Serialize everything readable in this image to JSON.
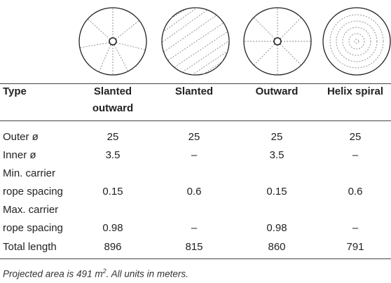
{
  "columns": [
    {
      "key": "type",
      "label": "Type"
    },
    {
      "key": "slanted_outward",
      "label_line1": "Slanted",
      "label_line2": "outward"
    },
    {
      "key": "slanted",
      "label_line1": "Slanted",
      "label_line2": ""
    },
    {
      "key": "outward",
      "label_line1": "Outward",
      "label_line2": ""
    },
    {
      "key": "helix_spiral",
      "label_line1": "Helix spiral",
      "label_line2": ""
    }
  ],
  "rows": [
    {
      "label_line1": "Outer ø",
      "label_line2": "",
      "values": [
        "25",
        "25",
        "25",
        "25"
      ]
    },
    {
      "label_line1": "Inner ø",
      "label_line2": "",
      "values": [
        "3.5",
        "–",
        "3.5",
        "–"
      ]
    },
    {
      "label_line1": "Min. carrier",
      "label_line2": "rope spacing",
      "values": [
        "0.15",
        "0.6",
        "0.15",
        "0.6"
      ]
    },
    {
      "label_line1": "Max. carrier",
      "label_line2": "rope spacing",
      "values": [
        "0.98",
        "–",
        "0.98",
        "–"
      ]
    },
    {
      "label_line1": "Total length",
      "label_line2": "",
      "values": [
        "896",
        "815",
        "860",
        "791"
      ]
    }
  ],
  "footnote": {
    "prefix": "Projected area is 491 m",
    "superscript": "2",
    "suffix": ". All units in meters."
  }
}
